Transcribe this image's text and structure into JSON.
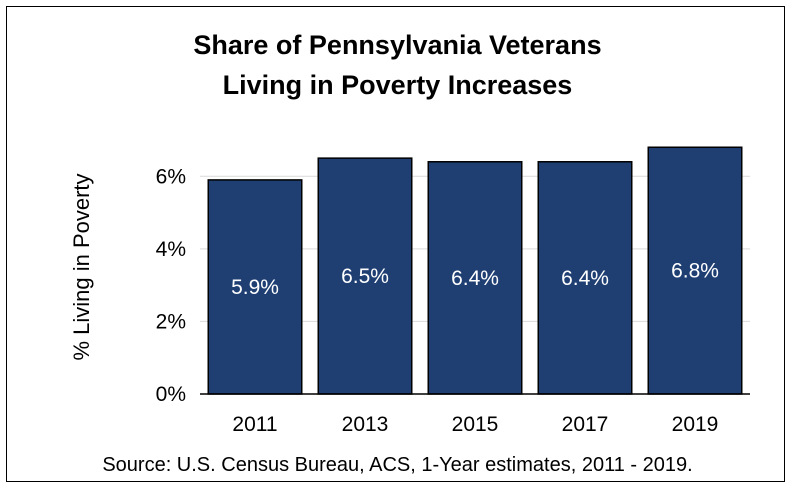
{
  "chart_data": {
    "type": "bar",
    "title_lines": [
      "Share of Pennsylvania Veterans",
      "Living in Poverty Increases"
    ],
    "ylabel": "% Living in Poverty",
    "xlabel": "",
    "categories": [
      "2011",
      "2013",
      "2015",
      "2017",
      "2019"
    ],
    "values": [
      5.9,
      6.5,
      6.4,
      6.4,
      6.8
    ],
    "data_labels": [
      "5.9%",
      "6.5%",
      "6.4%",
      "6.4%",
      "6.8%"
    ],
    "yticks": [
      0,
      2,
      4,
      6
    ],
    "ytick_labels": [
      "0%",
      "2%",
      "4%",
      "6%"
    ],
    "ylim": [
      0,
      7
    ],
    "grid": true,
    "bar_color": "#1f3f73"
  },
  "source": "Source: U.S. Census Bureau, ACS, 1-Year estimates, 2011 - 2019."
}
